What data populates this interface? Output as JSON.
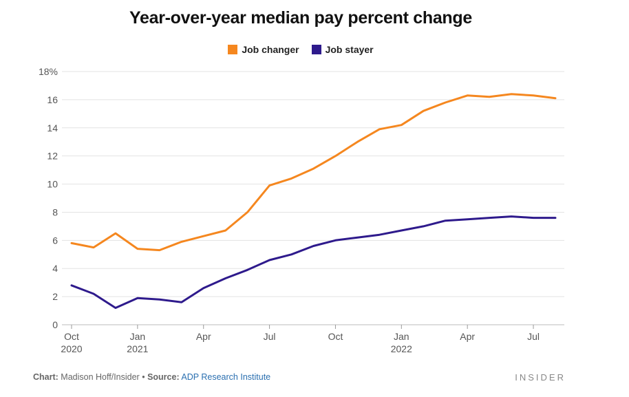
{
  "chart_data": {
    "type": "line",
    "title": "Year-over-year median pay percent change",
    "xlabel": "",
    "ylabel": "",
    "ylim": [
      0,
      18
    ],
    "y_ticks": [
      "0",
      "2",
      "4",
      "6",
      "8",
      "10",
      "12",
      "14",
      "16",
      "18%"
    ],
    "y_tick_values": [
      0,
      2,
      4,
      6,
      8,
      10,
      12,
      14,
      16,
      18
    ],
    "x_tick_labels": [
      {
        "index": 0,
        "line1": "Oct",
        "line2": "2020"
      },
      {
        "index": 3,
        "line1": "Jan",
        "line2": "2021"
      },
      {
        "index": 6,
        "line1": "Apr",
        "line2": ""
      },
      {
        "index": 9,
        "line1": "Jul",
        "line2": ""
      },
      {
        "index": 12,
        "line1": "Oct",
        "line2": ""
      },
      {
        "index": 15,
        "line1": "Jan",
        "line2": "2022"
      },
      {
        "index": 18,
        "line1": "Apr",
        "line2": ""
      },
      {
        "index": 21,
        "line1": "Jul",
        "line2": ""
      }
    ],
    "x": [
      "Oct 2020",
      "Nov 2020",
      "Dec 2020",
      "Jan 2021",
      "Feb 2021",
      "Mar 2021",
      "Apr 2021",
      "May 2021",
      "Jun 2021",
      "Jul 2021",
      "Aug 2021",
      "Sep 2021",
      "Oct 2021",
      "Nov 2021",
      "Dec 2021",
      "Jan 2022",
      "Feb 2022",
      "Mar 2022",
      "Apr 2022",
      "May 2022",
      "Jun 2022",
      "Jul 2022",
      "Aug 2022"
    ],
    "series": [
      {
        "name": "Job changer",
        "color": "#f5871f",
        "values": [
          5.8,
          5.5,
          6.5,
          5.4,
          5.3,
          5.9,
          6.3,
          6.7,
          8.0,
          9.9,
          10.4,
          11.1,
          12.0,
          13.0,
          13.9,
          14.2,
          15.2,
          15.8,
          16.3,
          16.2,
          16.4,
          16.3,
          16.1
        ]
      },
      {
        "name": "Job stayer",
        "color": "#2e1a8c",
        "values": [
          2.8,
          2.2,
          1.2,
          1.9,
          1.8,
          1.6,
          2.6,
          3.3,
          3.9,
          4.6,
          5.0,
          5.6,
          6.0,
          6.2,
          6.4,
          6.7,
          7.0,
          7.4,
          7.5,
          7.6,
          7.7,
          7.6,
          7.6
        ]
      }
    ],
    "grid": true,
    "legend_placement": "top-center"
  },
  "footer": {
    "chart_label": "Chart:",
    "chart_credit": "Madison Hoff/Insider",
    "separator": "•",
    "source_label": "Source:",
    "source_name": "ADP Research Institute"
  },
  "brand": "INSIDER"
}
